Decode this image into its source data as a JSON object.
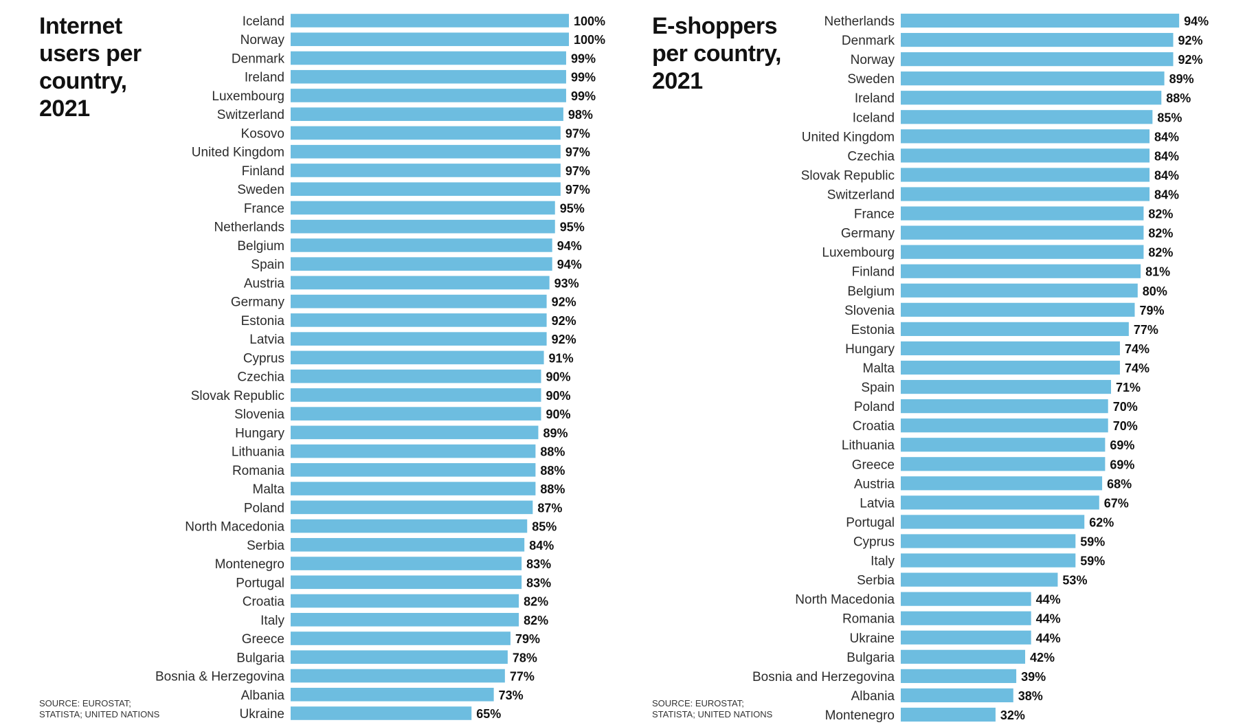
{
  "colors": {
    "bar": "#6dbde0",
    "text": "#111111"
  },
  "charts": [
    {
      "title": "Internet\nusers per\ncountry,\n2021",
      "source": "SOURCE: EUROSTAT;\nSTATISTA; UNITED NATIONS"
    },
    {
      "title": "E-shoppers\nper country,\n2021",
      "source": "SOURCE: EUROSTAT;\nSTATISTA; UNITED NATIONS"
    }
  ],
  "chart_data": [
    {
      "type": "bar",
      "orientation": "horizontal",
      "title": "Internet users per country, 2021",
      "value_suffix": "%",
      "xlim": [
        0,
        100
      ],
      "grid": false,
      "categories": [
        "Iceland",
        "Norway",
        "Denmark",
        "Ireland",
        "Luxembourg",
        "Switzerland",
        "Kosovo",
        "United Kingdom",
        "Finland",
        "Sweden",
        "France",
        "Netherlands",
        "Belgium",
        "Spain",
        "Austria",
        "Germany",
        "Estonia",
        "Latvia",
        "Cyprus",
        "Czechia",
        "Slovak Republic",
        "Slovenia",
        "Hungary",
        "Lithuania",
        "Romania",
        "Malta",
        "Poland",
        "North Macedonia",
        "Serbia",
        "Montenegro",
        "Portugal",
        "Croatia",
        "Italy",
        "Greece",
        "Bulgaria",
        "Bosnia & Herzegovina",
        "Albania",
        "Ukraine"
      ],
      "values": [
        100,
        100,
        99,
        99,
        99,
        98,
        97,
        97,
        97,
        97,
        95,
        95,
        94,
        94,
        93,
        92,
        92,
        92,
        91,
        90,
        90,
        90,
        89,
        88,
        88,
        88,
        87,
        85,
        84,
        83,
        83,
        82,
        82,
        79,
        78,
        77,
        73,
        65
      ]
    },
    {
      "type": "bar",
      "orientation": "horizontal",
      "title": "E-shoppers per country, 2021",
      "value_suffix": "%",
      "xlim": [
        0,
        100
      ],
      "grid": false,
      "categories": [
        "Netherlands",
        "Denmark",
        "Norway",
        "Sweden",
        "Ireland",
        "Iceland",
        "United Kingdom",
        "Czechia",
        "Slovak Republic",
        "Switzerland",
        "France",
        "Germany",
        "Luxembourg",
        "Finland",
        "Belgium",
        "Slovenia",
        "Estonia",
        "Hungary",
        "Malta",
        "Spain",
        "Poland",
        "Croatia",
        "Lithuania",
        "Greece",
        "Austria",
        "Latvia",
        "Portugal",
        "Cyprus",
        "Italy",
        "Serbia",
        "North Macedonia",
        "Romania",
        "Ukraine",
        "Bulgaria",
        "Bosnia and Herzegovina",
        "Albania",
        "Montenegro"
      ],
      "values": [
        94,
        92,
        92,
        89,
        88,
        85,
        84,
        84,
        84,
        84,
        82,
        82,
        82,
        81,
        80,
        79,
        77,
        74,
        74,
        71,
        70,
        70,
        69,
        69,
        68,
        67,
        62,
        59,
        59,
        53,
        44,
        44,
        44,
        42,
        39,
        38,
        32
      ]
    }
  ]
}
